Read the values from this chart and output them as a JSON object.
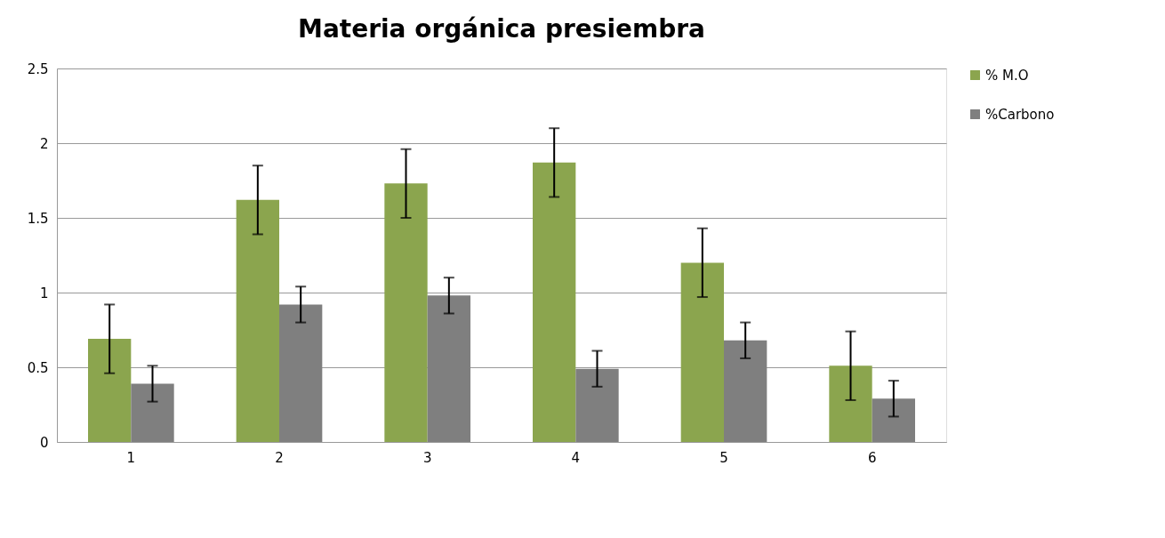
{
  "chart_data": {
    "type": "bar",
    "title": "Materia orgánica presiembra",
    "categories": [
      "1",
      "2",
      "3",
      "4",
      "5",
      "6"
    ],
    "series": [
      {
        "name": "% M.O",
        "color": "#8ba54e",
        "values": [
          0.69,
          1.62,
          1.73,
          1.87,
          1.2,
          0.51
        ],
        "errors": [
          0.23,
          0.23,
          0.23,
          0.23,
          0.23,
          0.23
        ]
      },
      {
        "name": "%Carbono",
        "color": "#7f7f7f",
        "values": [
          0.39,
          0.92,
          0.98,
          0.49,
          0.68,
          0.29
        ],
        "errors": [
          0.12,
          0.12,
          0.12,
          0.12,
          0.12,
          0.12
        ]
      }
    ],
    "ylim": [
      0,
      2.5
    ],
    "yticks": [
      0,
      0.5,
      1,
      1.5,
      2,
      2.5
    ],
    "grid": "y",
    "legend": "right"
  }
}
